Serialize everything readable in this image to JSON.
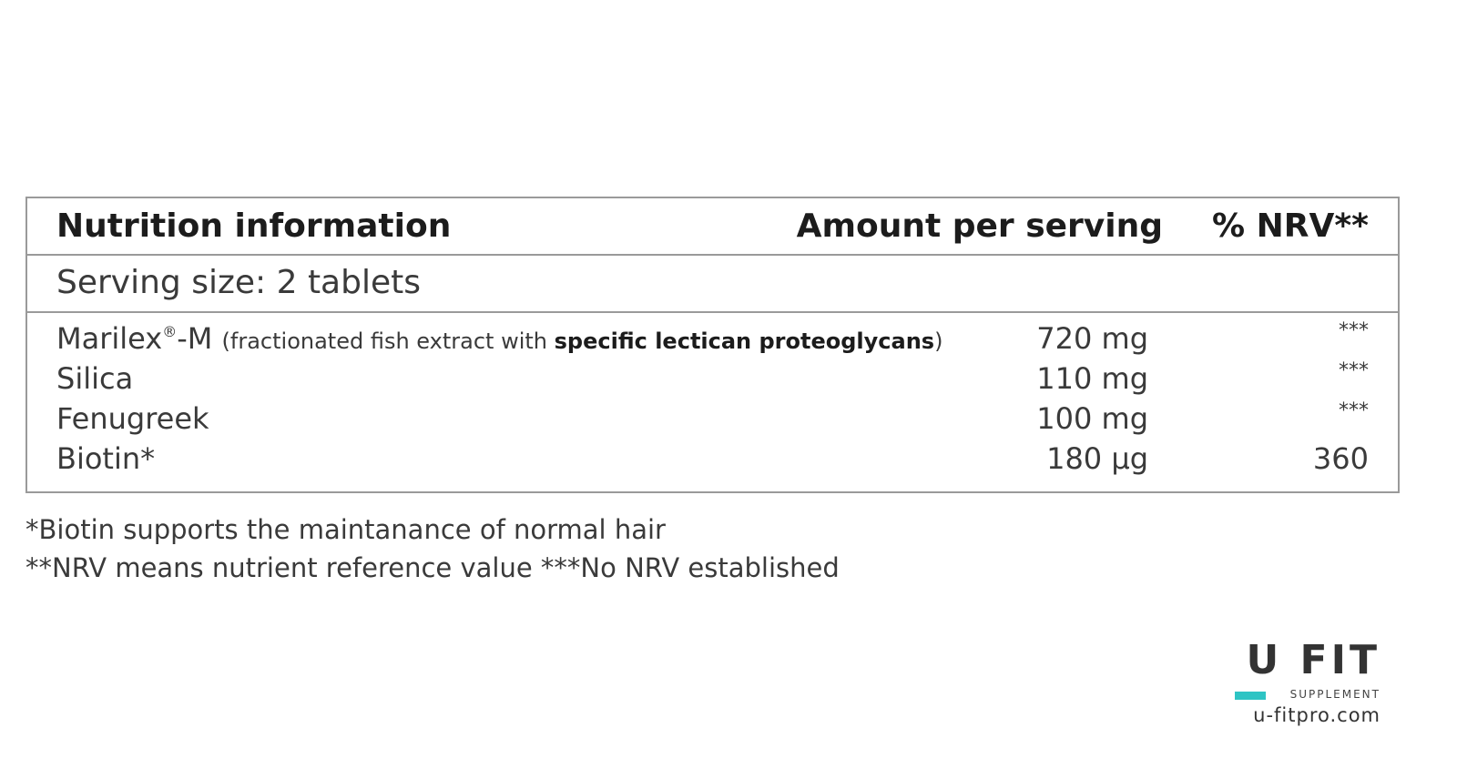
{
  "table": {
    "header": {
      "title": "Nutrition information",
      "amount_label": "Amount per serving",
      "nrv_label": "% NRV**"
    },
    "serving_size": "Serving size: 2 tablets",
    "rows": [
      {
        "name": "Marilex",
        "reg_mark": "®",
        "name_suffix": "-M",
        "desc_prefix": "(fractionated fish extract with",
        "desc_bold": "specific lectican proteoglycans",
        "desc_suffix": ")",
        "amount": "720 mg",
        "nrv": "***"
      },
      {
        "name": "Silica",
        "amount": "110 mg",
        "nrv": "***"
      },
      {
        "name": "Fenugreek",
        "amount": "100 mg",
        "nrv": "***"
      },
      {
        "name": "Biotin*",
        "amount": "180 µg",
        "nrv": "360"
      }
    ]
  },
  "footnotes": [
    "*Biotin supports the maintanance of normal hair",
    "**NRV means nutrient reference value ***No NRV established"
  ],
  "brand": {
    "logo_text": "U FIT",
    "tagline": "SUPPLEMENT",
    "website": "u-fitpro.com",
    "accent_color": "#2ec4c4"
  }
}
